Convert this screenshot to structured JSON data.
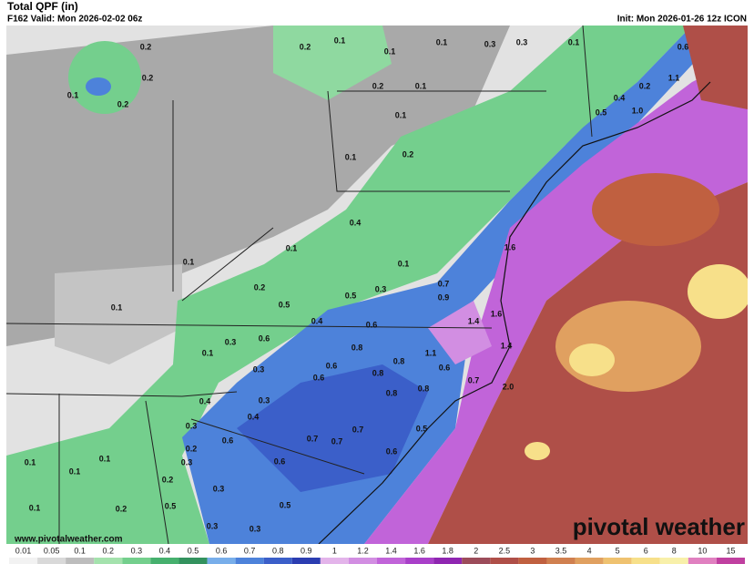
{
  "header": {
    "title": "Total QPF (in)",
    "valid": "F162 Valid: Mon 2026-02-02 06z",
    "init": "Init: Mon 2026-01-26 12z ICON"
  },
  "map_labels": [
    "0.2",
    "0.2",
    "0.1",
    "0.2",
    "0.2",
    "0.1",
    "0.1",
    "0.1",
    "0.3",
    "0.3",
    "0.1",
    "0.6",
    "0.2",
    "0.4",
    "0.5",
    "1.0",
    "1.1",
    "0.2",
    "0.1",
    "0.1",
    "0.2",
    "0.1",
    "0.4",
    "0.1",
    "0.1",
    "0.1",
    "0.2",
    "0.5",
    "0.5",
    "0.3",
    "0.1",
    "0.4",
    "0.6",
    "0.6",
    "0.8",
    "0.8",
    "0.8",
    "0.6",
    "0.6",
    "0.3",
    "0.4",
    "0.8",
    "0.6",
    "0.8",
    "1.1",
    "0.7",
    "1.4",
    "1.4",
    "0.7",
    "0.9",
    "1.6",
    "1.6",
    "2.0",
    "0.3",
    "0.4",
    "0.6",
    "0.7",
    "0.7",
    "0.7",
    "0.5",
    "0.6",
    "0.6",
    "0.3",
    "0.2",
    "0.5",
    "0.2",
    "0.1",
    "0.1",
    "0.1",
    "0.1",
    "0.5",
    "0.3",
    "0.3",
    "0.3",
    "0.2",
    "0.3",
    "0.1",
    "0.3"
  ],
  "watermark": {
    "url": "www.pivotalweather.com",
    "brand": "pivotal weather"
  },
  "colorbar": [
    {
      "label": "0.01",
      "color": "#f2f2f2"
    },
    {
      "label": "0.05",
      "color": "#d9d9d9"
    },
    {
      "label": "0.1",
      "color": "#bdbdbd"
    },
    {
      "label": "0.2",
      "color": "#a4e2ad"
    },
    {
      "label": "0.3",
      "color": "#74cf8d"
    },
    {
      "label": "0.4",
      "color": "#46b06e"
    },
    {
      "label": "0.5",
      "color": "#33925e"
    },
    {
      "label": "0.6",
      "color": "#78aeea"
    },
    {
      "label": "0.7",
      "color": "#4d82da"
    },
    {
      "label": "0.8",
      "color": "#3b5fc9"
    },
    {
      "label": "0.9",
      "color": "#2b3db1"
    },
    {
      "label": "1",
      "color": "#e3b4ea"
    },
    {
      "label": "1.2",
      "color": "#d28ee2"
    },
    {
      "label": "1.4",
      "color": "#c164d9"
    },
    {
      "label": "1.6",
      "color": "#a93fc9"
    },
    {
      "label": "1.8",
      "color": "#8f26b1"
    },
    {
      "label": "2",
      "color": "#9c4c5a"
    },
    {
      "label": "2.5",
      "color": "#af4f48"
    },
    {
      "label": "3",
      "color": "#c06040"
    },
    {
      "label": "3.5",
      "color": "#d08050"
    },
    {
      "label": "4",
      "color": "#e0a060"
    },
    {
      "label": "5",
      "color": "#efc270"
    },
    {
      "label": "6",
      "color": "#f7e08a"
    },
    {
      "label": "8",
      "color": "#f8f0aa"
    },
    {
      "label": "10",
      "color": "#e080c0"
    },
    {
      "label": "15",
      "color": "#c040a0"
    }
  ]
}
